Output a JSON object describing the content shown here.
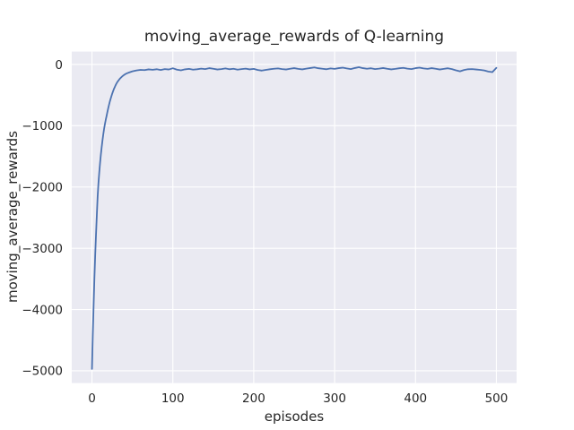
{
  "chart_data": {
    "type": "line",
    "title": "moving_average_rewards of Q-learning",
    "xlabel": "episodes",
    "ylabel": "moving_average_rewards",
    "xlim": [
      -25,
      525
    ],
    "ylim": [
      -5200,
      210
    ],
    "xticks": [
      0,
      100,
      200,
      300,
      400,
      500
    ],
    "yticks": [
      0,
      -1000,
      -2000,
      -3000,
      -4000,
      -5000
    ],
    "grid": true,
    "legend_position": "none",
    "style": {
      "figure_bg": "#ffffff",
      "axes_bg": "#eaeaf2",
      "grid_color": "#ffffff",
      "line_color": "#4c72b0",
      "text_color": "#262626",
      "line_width": 1.8
    },
    "series": [
      {
        "name": "moving_average_rewards",
        "x": [
          0,
          1,
          2,
          3,
          4,
          5,
          6,
          7,
          8,
          9,
          10,
          11,
          12,
          13,
          14,
          15,
          16,
          17,
          18,
          19,
          20,
          21,
          22,
          23,
          24,
          25,
          26,
          27,
          28,
          29,
          30,
          31,
          32,
          33,
          34,
          35,
          36,
          37,
          38,
          39,
          40,
          42,
          44,
          46,
          48,
          50,
          55,
          60,
          65,
          70,
          75,
          80,
          85,
          90,
          95,
          100,
          105,
          110,
          115,
          120,
          125,
          130,
          135,
          140,
          145,
          150,
          155,
          160,
          165,
          170,
          175,
          180,
          185,
          190,
          195,
          200,
          205,
          210,
          215,
          220,
          225,
          230,
          235,
          240,
          245,
          250,
          255,
          260,
          265,
          270,
          275,
          280,
          285,
          290,
          295,
          300,
          305,
          310,
          315,
          320,
          325,
          330,
          335,
          340,
          345,
          350,
          355,
          360,
          365,
          370,
          375,
          380,
          385,
          390,
          395,
          400,
          405,
          410,
          415,
          420,
          425,
          430,
          435,
          440,
          445,
          450,
          455,
          460,
          465,
          470,
          475,
          480,
          485,
          490,
          495,
          500
        ],
        "y": [
          -4970,
          -4420,
          -3950,
          -3500,
          -3110,
          -2780,
          -2460,
          -2160,
          -1940,
          -1765,
          -1610,
          -1470,
          -1350,
          -1240,
          -1140,
          -1050,
          -975,
          -905,
          -845,
          -780,
          -720,
          -663,
          -610,
          -563,
          -520,
          -478,
          -440,
          -405,
          -375,
          -345,
          -318,
          -295,
          -275,
          -258,
          -240,
          -226,
          -213,
          -200,
          -188,
          -178,
          -168,
          -152,
          -140,
          -130,
          -121,
          -112,
          -98,
          -88,
          -92,
          -80,
          -86,
          -78,
          -90,
          -75,
          -82,
          -62,
          -85,
          -95,
          -80,
          -72,
          -85,
          -78,
          -68,
          -75,
          -60,
          -70,
          -82,
          -75,
          -65,
          -78,
          -70,
          -85,
          -75,
          -68,
          -80,
          -72,
          -90,
          -100,
          -88,
          -78,
          -70,
          -65,
          -75,
          -82,
          -70,
          -60,
          -72,
          -80,
          -68,
          -58,
          -48,
          -62,
          -70,
          -78,
          -65,
          -72,
          -60,
          -52,
          -65,
          -75,
          -58,
          -45,
          -60,
          -70,
          -62,
          -75,
          -68,
          -58,
          -70,
          -80,
          -72,
          -62,
          -55,
          -68,
          -75,
          -60,
          -52,
          -65,
          -72,
          -60,
          -70,
          -82,
          -72,
          -62,
          -75,
          -95,
          -112,
          -90,
          -78,
          -75,
          -82,
          -88,
          -98,
          -115,
          -125,
          -55
        ]
      }
    ]
  }
}
